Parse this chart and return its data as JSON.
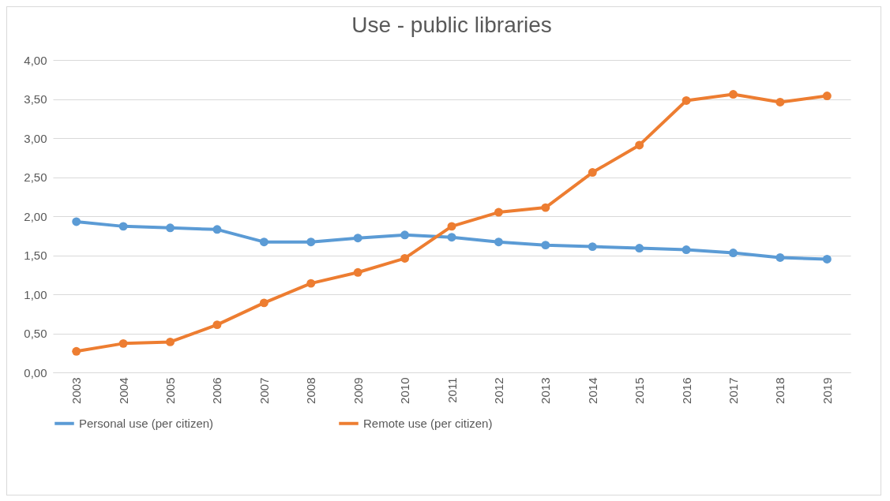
{
  "chart_data": {
    "type": "line",
    "title": "Use - public libraries",
    "categories": [
      "2003",
      "2004",
      "2005",
      "2006",
      "2007",
      "2008",
      "2009",
      "2010",
      "2011",
      "2012",
      "2013",
      "2014",
      "2015",
      "2016",
      "2017",
      "2018",
      "2019"
    ],
    "series": [
      {
        "name": "Personal use (per citizen)",
        "color": "#5b9bd5",
        "values": [
          1.93,
          1.87,
          1.85,
          1.83,
          1.67,
          1.67,
          1.72,
          1.76,
          1.73,
          1.67,
          1.63,
          1.61,
          1.59,
          1.57,
          1.53,
          1.47,
          1.45
        ]
      },
      {
        "name": "Remote use (per citizen)",
        "color": "#ed7d31",
        "values": [
          0.27,
          0.37,
          0.39,
          0.61,
          0.89,
          1.14,
          1.28,
          1.46,
          1.87,
          2.05,
          2.11,
          2.56,
          2.91,
          3.48,
          3.56,
          3.46,
          3.54
        ]
      }
    ],
    "ylim": [
      0,
      4
    ],
    "yticks": [
      {
        "value": 0,
        "label": "0,00"
      },
      {
        "value": 0.5,
        "label": "0,50"
      },
      {
        "value": 1,
        "label": "1,00"
      },
      {
        "value": 1.5,
        "label": "1,50"
      },
      {
        "value": 2,
        "label": "2,00"
      },
      {
        "value": 2.5,
        "label": "2,50"
      },
      {
        "value": 3,
        "label": "3,00"
      },
      {
        "value": 3.5,
        "label": "3,50"
      },
      {
        "value": 4,
        "label": "4,00"
      }
    ],
    "grid": "y",
    "legend": "bottom",
    "marker": "circle",
    "line_style": "solid"
  }
}
